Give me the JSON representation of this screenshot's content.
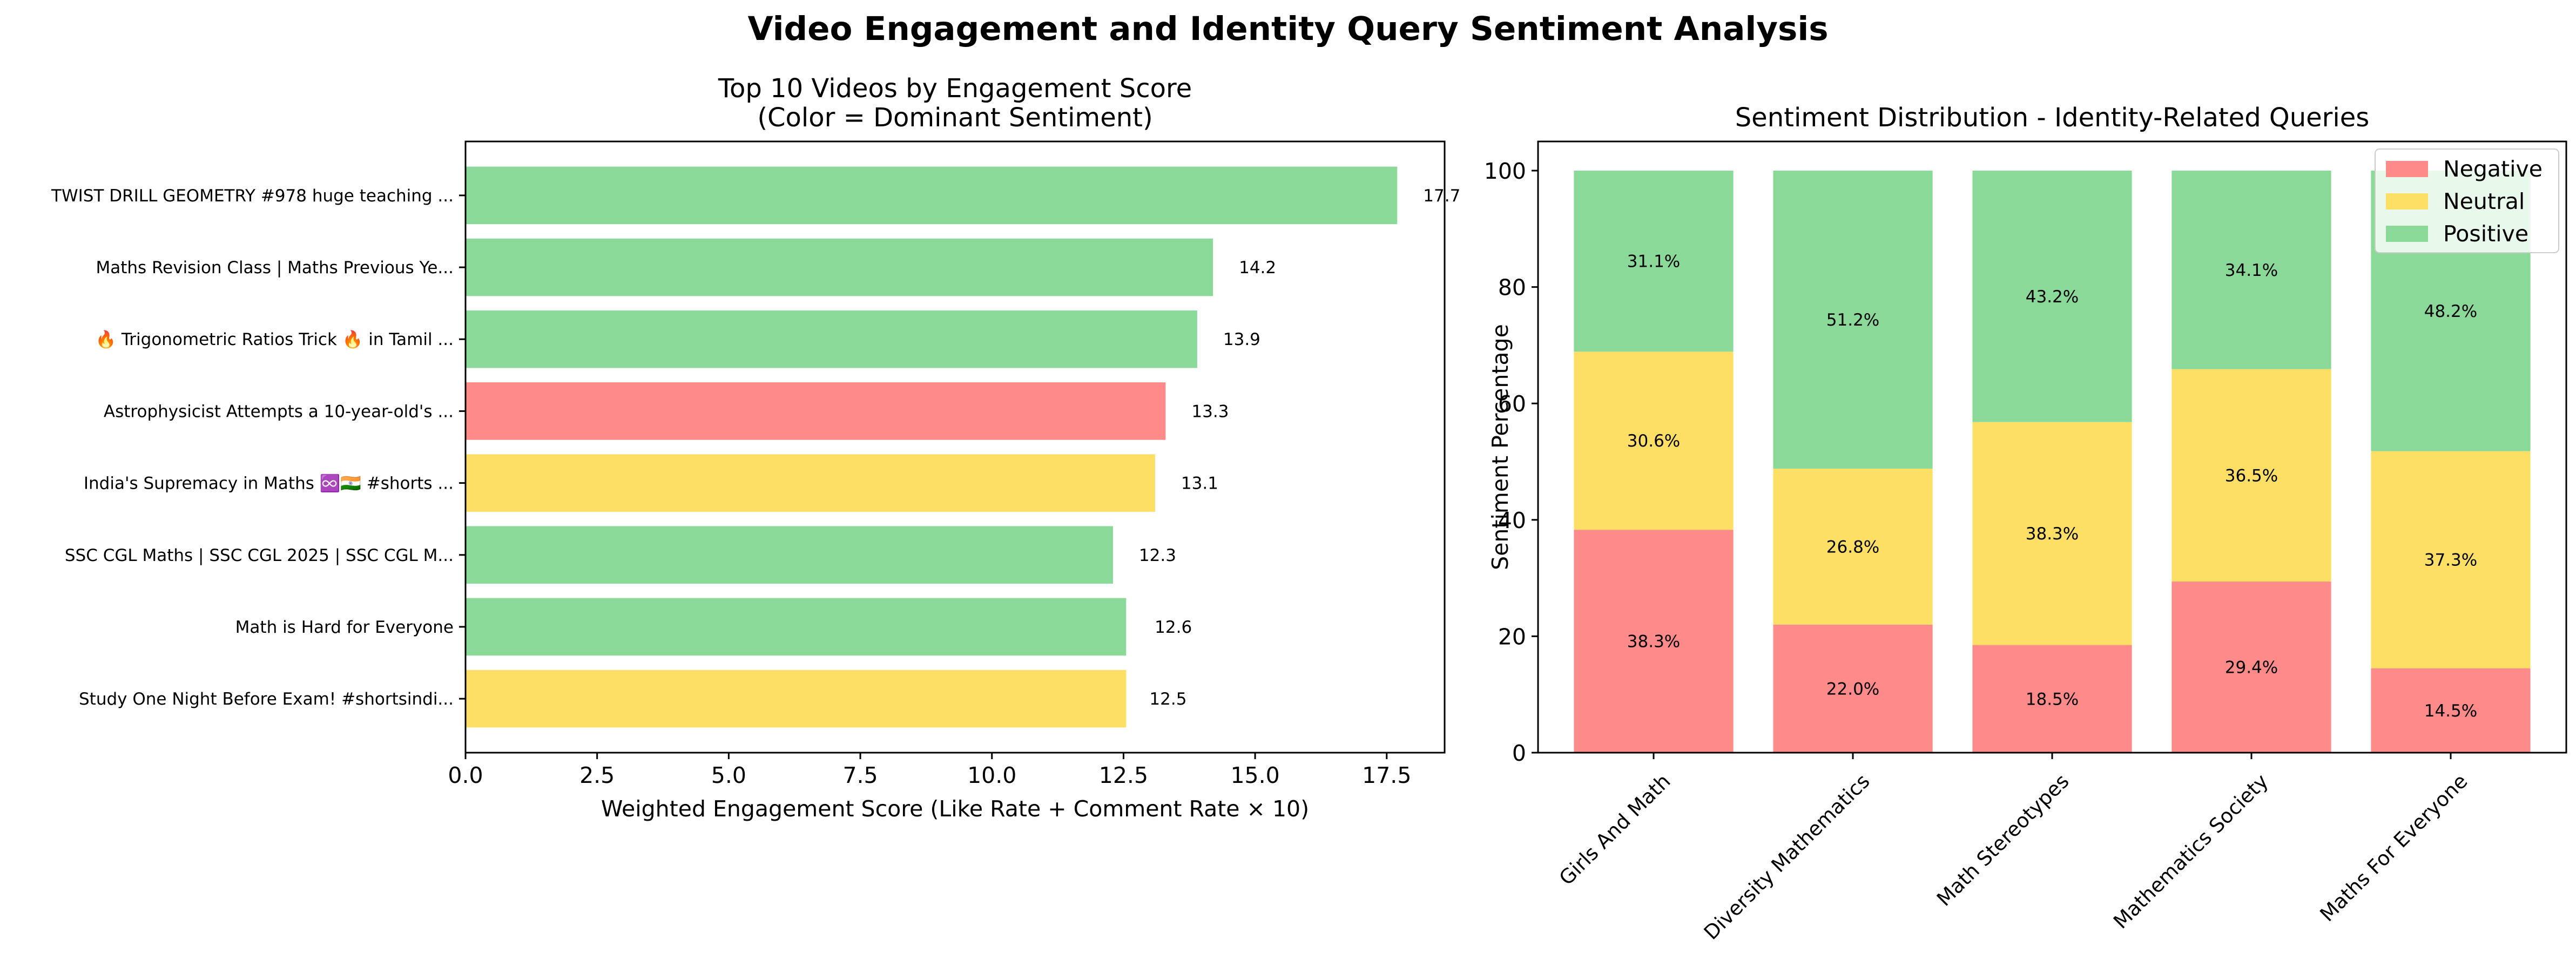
{
  "figure": {
    "suptitle": "Video Engagement and Identity Query Sentiment Analysis"
  },
  "colors": {
    "negative": "#ff8a8a",
    "neutral": "#fedf66",
    "positive": "#8ad998"
  },
  "chart_data": [
    {
      "type": "bar",
      "orientation": "horizontal",
      "title": "Top 10 Videos by Engagement Score\n(Color = Dominant Sentiment)",
      "xlabel": "Weighted Engagement Score (Like Rate + Comment Rate × 10)",
      "ylabel": "",
      "xlim": [
        0,
        18.6
      ],
      "xticks": [
        "0.0",
        "2.5",
        "5.0",
        "7.5",
        "10.0",
        "12.5",
        "15.0",
        "17.5"
      ],
      "categories": [
        "TWIST DRILL GEOMETRY #978 huge teaching ...",
        "Maths Revision Class | Maths Previous Ye...",
        "🔥 Trigonometric Ratios Trick 🔥 in Tamil ...",
        "Astrophysicist Attempts a 10-year-old's ...",
        "India's Supremacy in Maths ♾️🇮🇳 #shorts ...",
        "SSC CGL Maths | SSC CGL 2025 | SSC CGL M...",
        "Math is Hard for Everyone",
        "Study One Night Before Exam! #shortsindi..."
      ],
      "values": [
        17.7,
        14.2,
        13.9,
        13.3,
        13.1,
        12.3,
        12.6,
        12.5
      ],
      "value_labels": [
        "17.7",
        "14.2",
        "13.9",
        "13.3",
        "13.1",
        "12.3",
        "12.6",
        "12.5"
      ],
      "bar_values": [
        17.7,
        14.2,
        13.9,
        13.3,
        13.1,
        12.3,
        12.55,
        12.55
      ],
      "sentiment": [
        "positive",
        "positive",
        "positive",
        "negative",
        "neutral",
        "positive",
        "positive",
        "neutral"
      ],
      "grid": false,
      "legend": "none"
    },
    {
      "type": "bar",
      "stacked": true,
      "title": "Sentiment Distribution - Identity-Related Queries",
      "xlabel": "",
      "ylabel": "Sentiment Percentage",
      "ylim": [
        0,
        100
      ],
      "yticks": [
        "0",
        "20",
        "40",
        "60",
        "80",
        "100"
      ],
      "categories": [
        "Girls And Math",
        "Diversity Mathematics",
        "Math Stereotypes",
        "Mathematics Society",
        "Maths For Everyone"
      ],
      "series": [
        {
          "name": "Negative",
          "values": [
            38.3,
            22.0,
            18.5,
            29.4,
            14.5
          ],
          "labels": [
            "38.3%",
            "22.0%",
            "18.5%",
            "29.4%",
            "14.5%"
          ]
        },
        {
          "name": "Neutral",
          "values": [
            30.6,
            26.8,
            38.3,
            36.5,
            37.3
          ],
          "labels": [
            "30.6%",
            "26.8%",
            "38.3%",
            "36.5%",
            "37.3%"
          ]
        },
        {
          "name": "Positive",
          "values": [
            31.1,
            51.2,
            43.2,
            34.1,
            48.2
          ],
          "labels": [
            "31.1%",
            "51.2%",
            "43.2%",
            "34.1%",
            "48.2%"
          ]
        }
      ],
      "grid": false,
      "legend": "top-right"
    }
  ]
}
